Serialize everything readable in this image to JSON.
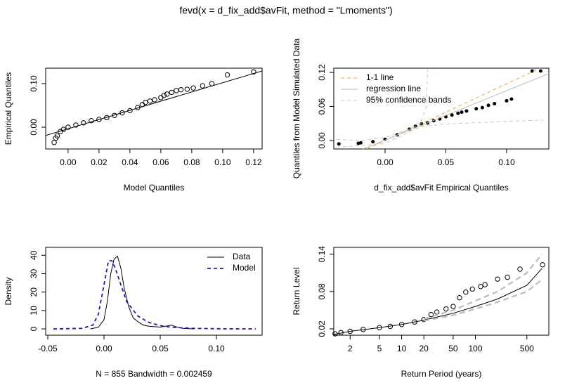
{
  "title": "fevd(x = d_fix_add$avFit, method = \"Lmoments\")",
  "chart_data": [
    {
      "type": "scatter",
      "xlabel": "Model Quantiles",
      "ylabel": "Empirical Quantiles",
      "xlim": [
        -0.0145,
        0.1255
      ],
      "ylim": [
        -0.05,
        0.1355
      ],
      "xticks": [
        {
          "value": 0,
          "label": "0.00"
        },
        {
          "value": 0.02,
          "label": "0.02"
        },
        {
          "value": 0.04,
          "label": "0.04"
        },
        {
          "value": 0.06,
          "label": "0.06"
        },
        {
          "value": 0.08,
          "label": "0.08"
        },
        {
          "value": 0.1,
          "label": "0.10"
        },
        {
          "value": 0.12,
          "label": "0.12"
        }
      ],
      "yticks": [
        {
          "value": 0,
          "label": "0.00"
        },
        {
          "value": 0.1,
          "label": "0.10"
        }
      ],
      "series": [
        {
          "mode": "points",
          "marker": "open",
          "color": "#000000",
          "x": [
            -0.009,
            -0.008,
            -0.007,
            -0.005,
            -0.003,
            0,
            0.005,
            0.01,
            0.015,
            0.02,
            0.025,
            0.03,
            0.035,
            0.04,
            0.045,
            0.048,
            0.05,
            0.053,
            0.056,
            0.06,
            0.062,
            0.064,
            0.067,
            0.07,
            0.073,
            0.077,
            0.081,
            0.087,
            0.093,
            0.103,
            0.12
          ],
          "values": [
            -0.035,
            -0.025,
            -0.02,
            -0.01,
            -0.005,
            0,
            0.005,
            0.01,
            0.015,
            0.018,
            0.022,
            0.027,
            0.033,
            0.038,
            0.045,
            0.052,
            0.057,
            0.06,
            0.063,
            0.068,
            0.073,
            0.076,
            0.08,
            0.084,
            0.086,
            0.087,
            0.09,
            0.095,
            0.1,
            0.12,
            0.127
          ]
        },
        {
          "mode": "line",
          "color": "#000000",
          "x": [
            -0.0145,
            0.1255
          ],
          "values": [
            -0.019,
            0.129
          ]
        }
      ]
    },
    {
      "type": "scatter",
      "xlabel": "d_fix_add$avFit Empirical Quantiles",
      "ylabel": "Quantiles from Model Simulated Data",
      "xlim": [
        -0.0422,
        0.1347
      ],
      "ylim": [
        -0.0149,
        0.1275
      ],
      "legend": "topleft",
      "xticks": [
        {
          "value": 0,
          "label": "0.00"
        },
        {
          "value": 0.05,
          "label": "0.05"
        },
        {
          "value": 0.1,
          "label": "0.10"
        }
      ],
      "yticks": [
        {
          "value": 0,
          "label": "0.00"
        },
        {
          "value": 0.06,
          "label": "0.06"
        },
        {
          "value": 0.12,
          "label": "0.12"
        }
      ],
      "series": [
        {
          "mode": "points",
          "marker": "filled",
          "color": "#000000",
          "x": [
            -0.038,
            -0.022,
            -0.02,
            -0.01,
            0,
            0.01,
            0.02,
            0.025,
            0.03,
            0.035,
            0.04,
            0.045,
            0.05,
            0.055,
            0.06,
            0.063,
            0.067,
            0.075,
            0.08,
            0.085,
            0.09,
            0.1,
            0.104,
            0.121,
            0.128
          ],
          "values": [
            -0.006,
            -0.005,
            -0.004,
            -0.002,
            0.002,
            0.01,
            0.02,
            0.025,
            0.029,
            0.031,
            0.035,
            0.038,
            0.042,
            0.045,
            0.048,
            0.05,
            0.052,
            0.056,
            0.058,
            0.062,
            0.065,
            0.07,
            0.073,
            0.1225,
            0.1225
          ]
        },
        {
          "name": "1-1 line",
          "mode": "line",
          "dash": true,
          "color": "#f5a33a",
          "x": [
            -0.0149,
            0.1275
          ],
          "values": [
            -0.0149,
            0.1275
          ]
        },
        {
          "name": "regression line",
          "mode": "line",
          "color": "#bbbbbb",
          "x": [
            -0.0422,
            0.1347
          ],
          "values": [
            -0.036,
            0.118
          ]
        },
        {
          "name": "95% confidence bands",
          "mode": "line",
          "dash": true,
          "color": "#c8c8c8",
          "x": [
            -0.04,
            -0.02,
            0,
            0.02,
            0.03,
            0.034,
            0.035
          ],
          "values": [
            0.002,
            0,
            0.005,
            0.02,
            0.035,
            0.06,
            0.125
          ]
        },
        {
          "mode": "line",
          "dash": true,
          "color": "#c8c8c8",
          "x": [
            -0.04,
            0,
            0.02,
            0.03,
            0.05,
            0.08,
            0.13
          ],
          "values": [
            -0.012,
            -0.005,
            0.015,
            0.025,
            0.029,
            0.032,
            0.036
          ]
        }
      ]
    },
    {
      "type": "line",
      "xlabel": "N = 855   Bandwidth = 0.002459",
      "ylabel": "Density",
      "xlim": [
        -0.0519,
        0.1406
      ],
      "ylim": [
        -3.4,
        44.3
      ],
      "legend": "topright",
      "xticks": [
        -0.05,
        {
          "value": 0,
          "label": "0.00"
        },
        0.05,
        {
          "value": 0.1,
          "label": "0.10"
        }
      ],
      "yticks": [
        0,
        10,
        20,
        30,
        40
      ],
      "series": [
        {
          "name": "Data",
          "mode": "line",
          "color": "#000000",
          "x": [
            -0.012,
            -0.005,
            0,
            0.003,
            0.006,
            0.009,
            0.012,
            0.015,
            0.018,
            0.022,
            0.026,
            0.03,
            0.035,
            0.04,
            0.05,
            0.06,
            0.065,
            0.07,
            0.08
          ],
          "values": [
            0,
            1,
            5,
            15,
            30,
            38,
            39.5,
            33,
            22,
            12,
            6,
            4,
            2,
            1.5,
            1,
            2,
            1,
            0.3,
            0
          ]
        },
        {
          "name": "Model",
          "mode": "line",
          "dash": true,
          "color": "#1a1acc",
          "x": [
            -0.045,
            -0.02,
            -0.01,
            -0.005,
            0,
            0.004,
            0.007,
            0.01,
            0.015,
            0.02,
            0.03,
            0.04,
            0.05,
            0.06,
            0.08,
            0.1,
            0.135
          ],
          "values": [
            0,
            0.3,
            2,
            8,
            24,
            37,
            37,
            33,
            24,
            15,
            7,
            3.5,
            1.8,
            0.9,
            0.3,
            0.1,
            0
          ]
        }
      ]
    },
    {
      "type": "scatter",
      "xlabel": "Return Period (years)",
      "ylabel": "Return Level",
      "xlog": true,
      "xlim": [
        1.2,
        991
      ],
      "ylim": [
        0.0098,
        0.151
      ],
      "xticks": [
        2,
        5,
        10,
        20,
        50,
        100,
        500
      ],
      "yticks": [
        0.02,
        0.08,
        0.14
      ],
      "series": [
        {
          "mode": "points",
          "marker": "open",
          "color": "#000000",
          "x": [
            1.25,
            1.5,
            2,
            3,
            5,
            7,
            10,
            15,
            20,
            25,
            30,
            40,
            50,
            61,
            74,
            91,
            118,
            135,
            200,
            272,
            403,
            814
          ],
          "values": [
            0.012,
            0.014,
            0.016,
            0.019,
            0.022,
            0.024,
            0.027,
            0.031,
            0.035,
            0.043,
            0.047,
            0.052,
            0.056,
            0.07,
            0.079,
            0.084,
            0.088,
            0.091,
            0.1,
            0.103,
            0.116,
            0.123
          ]
        },
        {
          "mode": "line",
          "color": "#000000",
          "x": [
            1.2,
            2,
            5,
            10,
            20,
            50,
            100,
            200,
            500,
            800
          ],
          "values": [
            0.011,
            0.016,
            0.022,
            0.027,
            0.034,
            0.045,
            0.056,
            0.068,
            0.09,
            0.117
          ]
        },
        {
          "mode": "line",
          "dash": true,
          "wide": true,
          "color": "#bbbbbb",
          "x": [
            20,
            50,
            100,
            200,
            500,
            800
          ],
          "values": [
            0.036,
            0.05,
            0.065,
            0.08,
            0.11,
            0.14
          ]
        },
        {
          "mode": "line",
          "dash": true,
          "wide": true,
          "color": "#bbbbbb",
          "x": [
            20,
            50,
            100,
            200,
            500,
            800
          ],
          "values": [
            0.033,
            0.042,
            0.052,
            0.063,
            0.08,
            0.099
          ]
        }
      ]
    }
  ]
}
